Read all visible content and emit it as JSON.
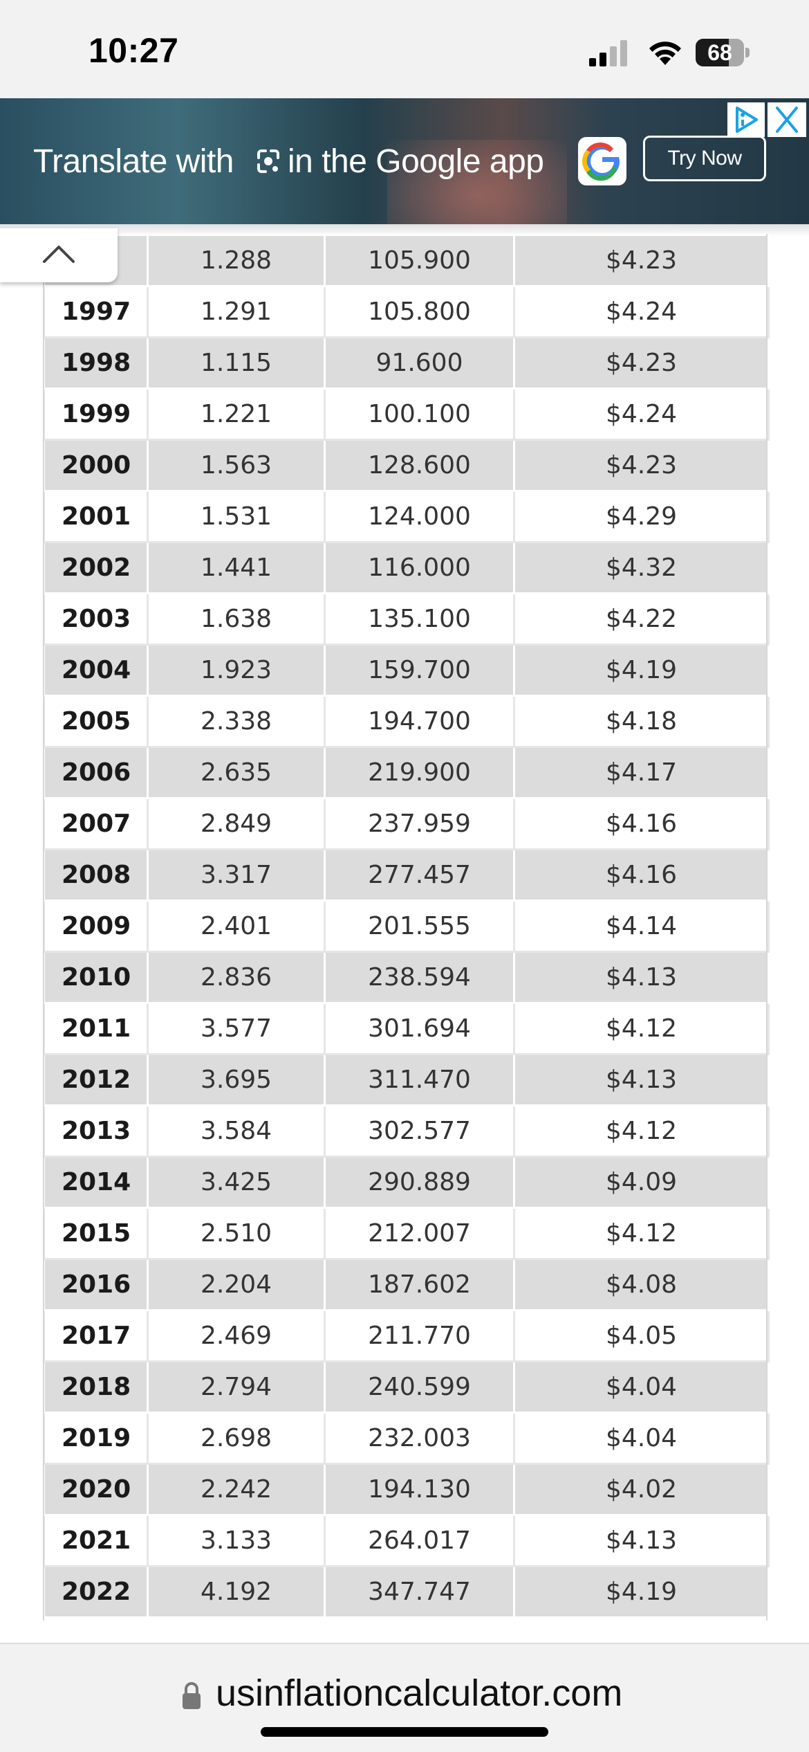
{
  "status_bar": {
    "time": "10:27",
    "battery_percent": "68",
    "battery_level": 0.68,
    "icons": [
      "signal-icon",
      "wifi-icon",
      "battery-icon"
    ]
  },
  "ad": {
    "text_before": "Translate with",
    "text_after": "in the Google app",
    "button_label": "Try Now",
    "icons": [
      "lens-icon",
      "google-logo",
      "adchoices-icon",
      "close-icon"
    ]
  },
  "collapse_tab": {
    "icon": "chevron-up-icon"
  },
  "table": {
    "rows": [
      {
        "year": "6",
        "c2": "1.288",
        "c3": "105.900",
        "c4": "$4.23"
      },
      {
        "year": "1997",
        "c2": "1.291",
        "c3": "105.800",
        "c4": "$4.24"
      },
      {
        "year": "1998",
        "c2": "1.115",
        "c3": "91.600",
        "c4": "$4.23"
      },
      {
        "year": "1999",
        "c2": "1.221",
        "c3": "100.100",
        "c4": "$4.24"
      },
      {
        "year": "2000",
        "c2": "1.563",
        "c3": "128.600",
        "c4": "$4.23"
      },
      {
        "year": "2001",
        "c2": "1.531",
        "c3": "124.000",
        "c4": "$4.29"
      },
      {
        "year": "2002",
        "c2": "1.441",
        "c3": "116.000",
        "c4": "$4.32"
      },
      {
        "year": "2003",
        "c2": "1.638",
        "c3": "135.100",
        "c4": "$4.22"
      },
      {
        "year": "2004",
        "c2": "1.923",
        "c3": "159.700",
        "c4": "$4.19"
      },
      {
        "year": "2005",
        "c2": "2.338",
        "c3": "194.700",
        "c4": "$4.18"
      },
      {
        "year": "2006",
        "c2": "2.635",
        "c3": "219.900",
        "c4": "$4.17"
      },
      {
        "year": "2007",
        "c2": "2.849",
        "c3": "237.959",
        "c4": "$4.16"
      },
      {
        "year": "2008",
        "c2": "3.317",
        "c3": "277.457",
        "c4": "$4.16"
      },
      {
        "year": "2009",
        "c2": "2.401",
        "c3": "201.555",
        "c4": "$4.14"
      },
      {
        "year": "2010",
        "c2": "2.836",
        "c3": "238.594",
        "c4": "$4.13"
      },
      {
        "year": "2011",
        "c2": "3.577",
        "c3": "301.694",
        "c4": "$4.12"
      },
      {
        "year": "2012",
        "c2": "3.695",
        "c3": "311.470",
        "c4": "$4.13"
      },
      {
        "year": "2013",
        "c2": "3.584",
        "c3": "302.577",
        "c4": "$4.12"
      },
      {
        "year": "2014",
        "c2": "3.425",
        "c3": "290.889",
        "c4": "$4.09"
      },
      {
        "year": "2015",
        "c2": "2.510",
        "c3": "212.007",
        "c4": "$4.12"
      },
      {
        "year": "2016",
        "c2": "2.204",
        "c3": "187.602",
        "c4": "$4.08"
      },
      {
        "year": "2017",
        "c2": "2.469",
        "c3": "211.770",
        "c4": "$4.05"
      },
      {
        "year": "2018",
        "c2": "2.794",
        "c3": "240.599",
        "c4": "$4.04"
      },
      {
        "year": "2019",
        "c2": "2.698",
        "c3": "232.003",
        "c4": "$4.04"
      },
      {
        "year": "2020",
        "c2": "2.242",
        "c3": "194.130",
        "c4": "$4.02"
      },
      {
        "year": "2021",
        "c2": "3.133",
        "c3": "264.017",
        "c4": "$4.13"
      },
      {
        "year": "2022",
        "c2": "4.192",
        "c3": "347.747",
        "c4": "$4.19"
      }
    ]
  },
  "browser": {
    "url": "usinflationcalculator.com",
    "icons": [
      "lock-icon"
    ]
  },
  "colors": {
    "row_shaded": "#dcdcdc",
    "row_plain": "#ffffff",
    "text": "#333333",
    "accent_ad_blue": "#1aa1e6"
  }
}
